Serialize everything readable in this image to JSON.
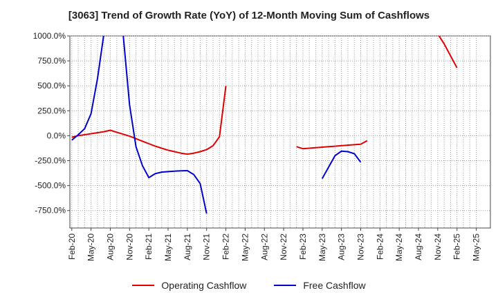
{
  "chart_data": {
    "type": "line",
    "title": "[3063]  Trend of Growth Rate (YoY) of 12-Month Moving Sum of Cashflows",
    "xlabel": "",
    "ylabel": "",
    "ylim": [
      -925,
      1000
    ],
    "y_ticks": [
      1000,
      750,
      500,
      250,
      0,
      -250,
      -500,
      -750
    ],
    "y_tick_labels": [
      "1000.0%",
      "750.0%",
      "500.0%",
      "250.0%",
      "0.0%",
      "-250.0%",
      "-500.0%",
      "-750.0%"
    ],
    "x_tick_labels": [
      "Feb-20",
      "May-20",
      "Aug-20",
      "Nov-20",
      "Feb-21",
      "May-21",
      "Aug-21",
      "Nov-21",
      "Feb-22",
      "May-22",
      "Aug-22",
      "Nov-22",
      "Feb-23",
      "May-23",
      "Aug-23",
      "Nov-23",
      "Feb-24",
      "May-24",
      "Aug-24",
      "Nov-24",
      "Feb-25",
      "May-25"
    ],
    "grid": true,
    "legend_position": "bottom",
    "series": [
      {
        "name": "Operating Cashflow",
        "color": "#e00000",
        "points": [
          [
            "2020-02",
            -15
          ],
          [
            "2020-03",
            0
          ],
          [
            "2020-04",
            10
          ],
          [
            "2020-05",
            20
          ],
          [
            "2020-06",
            30
          ],
          [
            "2020-07",
            40
          ],
          [
            "2020-08",
            55
          ],
          [
            "2020-09",
            35
          ],
          [
            "2020-10",
            15
          ],
          [
            "2020-11",
            -5
          ],
          [
            "2020-12",
            -30
          ],
          [
            "2021-01",
            -55
          ],
          [
            "2021-02",
            -80
          ],
          [
            "2021-03",
            -105
          ],
          [
            "2021-04",
            -125
          ],
          [
            "2021-05",
            -145
          ],
          [
            "2021-06",
            -160
          ],
          [
            "2021-07",
            -175
          ],
          [
            "2021-08",
            -185
          ],
          [
            "2021-09",
            -175
          ],
          [
            "2021-10",
            -160
          ],
          [
            "2021-11",
            -140
          ],
          [
            "2021-12",
            -100
          ],
          [
            "2022-01",
            -10
          ],
          [
            "2022-02",
            500
          ],
          null,
          [
            "2023-01",
            -110
          ],
          [
            "2023-02",
            -130
          ],
          [
            "2023-03",
            -125
          ],
          [
            "2023-04",
            -120
          ],
          [
            "2023-05",
            -115
          ],
          [
            "2023-06",
            -110
          ],
          [
            "2023-07",
            -105
          ],
          [
            "2023-08",
            -100
          ],
          [
            "2023-09",
            -95
          ],
          [
            "2023-10",
            -90
          ],
          [
            "2023-11",
            -85
          ],
          [
            "2023-12",
            -50
          ],
          null,
          [
            "2024-11",
            1020
          ],
          [
            "2024-12",
            920
          ],
          [
            "2025-02",
            680
          ]
        ]
      },
      {
        "name": "Free Cashflow",
        "color": "#0000cc",
        "points": [
          [
            "2020-02",
            -45
          ],
          [
            "2020-03",
            10
          ],
          [
            "2020-04",
            70
          ],
          [
            "2020-05",
            220
          ],
          [
            "2020-06",
            570
          ],
          [
            "2020-07",
            1020
          ],
          null,
          [
            "2020-10",
            1020
          ],
          [
            "2020-11",
            310
          ],
          [
            "2020-12",
            -110
          ],
          [
            "2021-01",
            -300
          ],
          [
            "2021-02",
            -420
          ],
          [
            "2021-03",
            -380
          ],
          [
            "2021-04",
            -365
          ],
          [
            "2021-05",
            -360
          ],
          [
            "2021-06",
            -355
          ],
          [
            "2021-07",
            -352
          ],
          [
            "2021-08",
            -350
          ],
          [
            "2021-09",
            -390
          ],
          [
            "2021-10",
            -480
          ],
          [
            "2021-11",
            -780
          ],
          null,
          [
            "2023-05",
            -430
          ],
          [
            "2023-07",
            -200
          ],
          [
            "2023-08",
            -155
          ],
          [
            "2023-09",
            -160
          ],
          [
            "2023-10",
            -180
          ],
          [
            "2023-11",
            -265
          ]
        ]
      }
    ]
  }
}
